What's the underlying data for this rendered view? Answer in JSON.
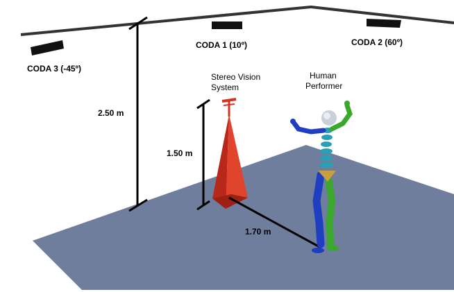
{
  "cameras": [
    {
      "label": "CODA 3 (-45º)"
    },
    {
      "label": "CODA 1 (10º)"
    },
    {
      "label": "CODA 2 (60º)"
    }
  ],
  "labels": {
    "stereo_vision_line1": "Stereo Vision",
    "stereo_vision_line2": "System",
    "human_line1": "Human",
    "human_line2": "Performer"
  },
  "dimensions": {
    "camera_height": "2.50 m",
    "stereo_height": "1.50 m",
    "distance": "1.70 m"
  },
  "colors": {
    "floor": "#6e7e9c",
    "stereo_system": "#d2341f",
    "limbs_right": "#1f3fc0",
    "limbs_left": "#3aa82c",
    "spine": "#2aa0b4",
    "head": "#c8d0dc",
    "pelvis": "#c8a040",
    "ceiling": "#333333"
  }
}
